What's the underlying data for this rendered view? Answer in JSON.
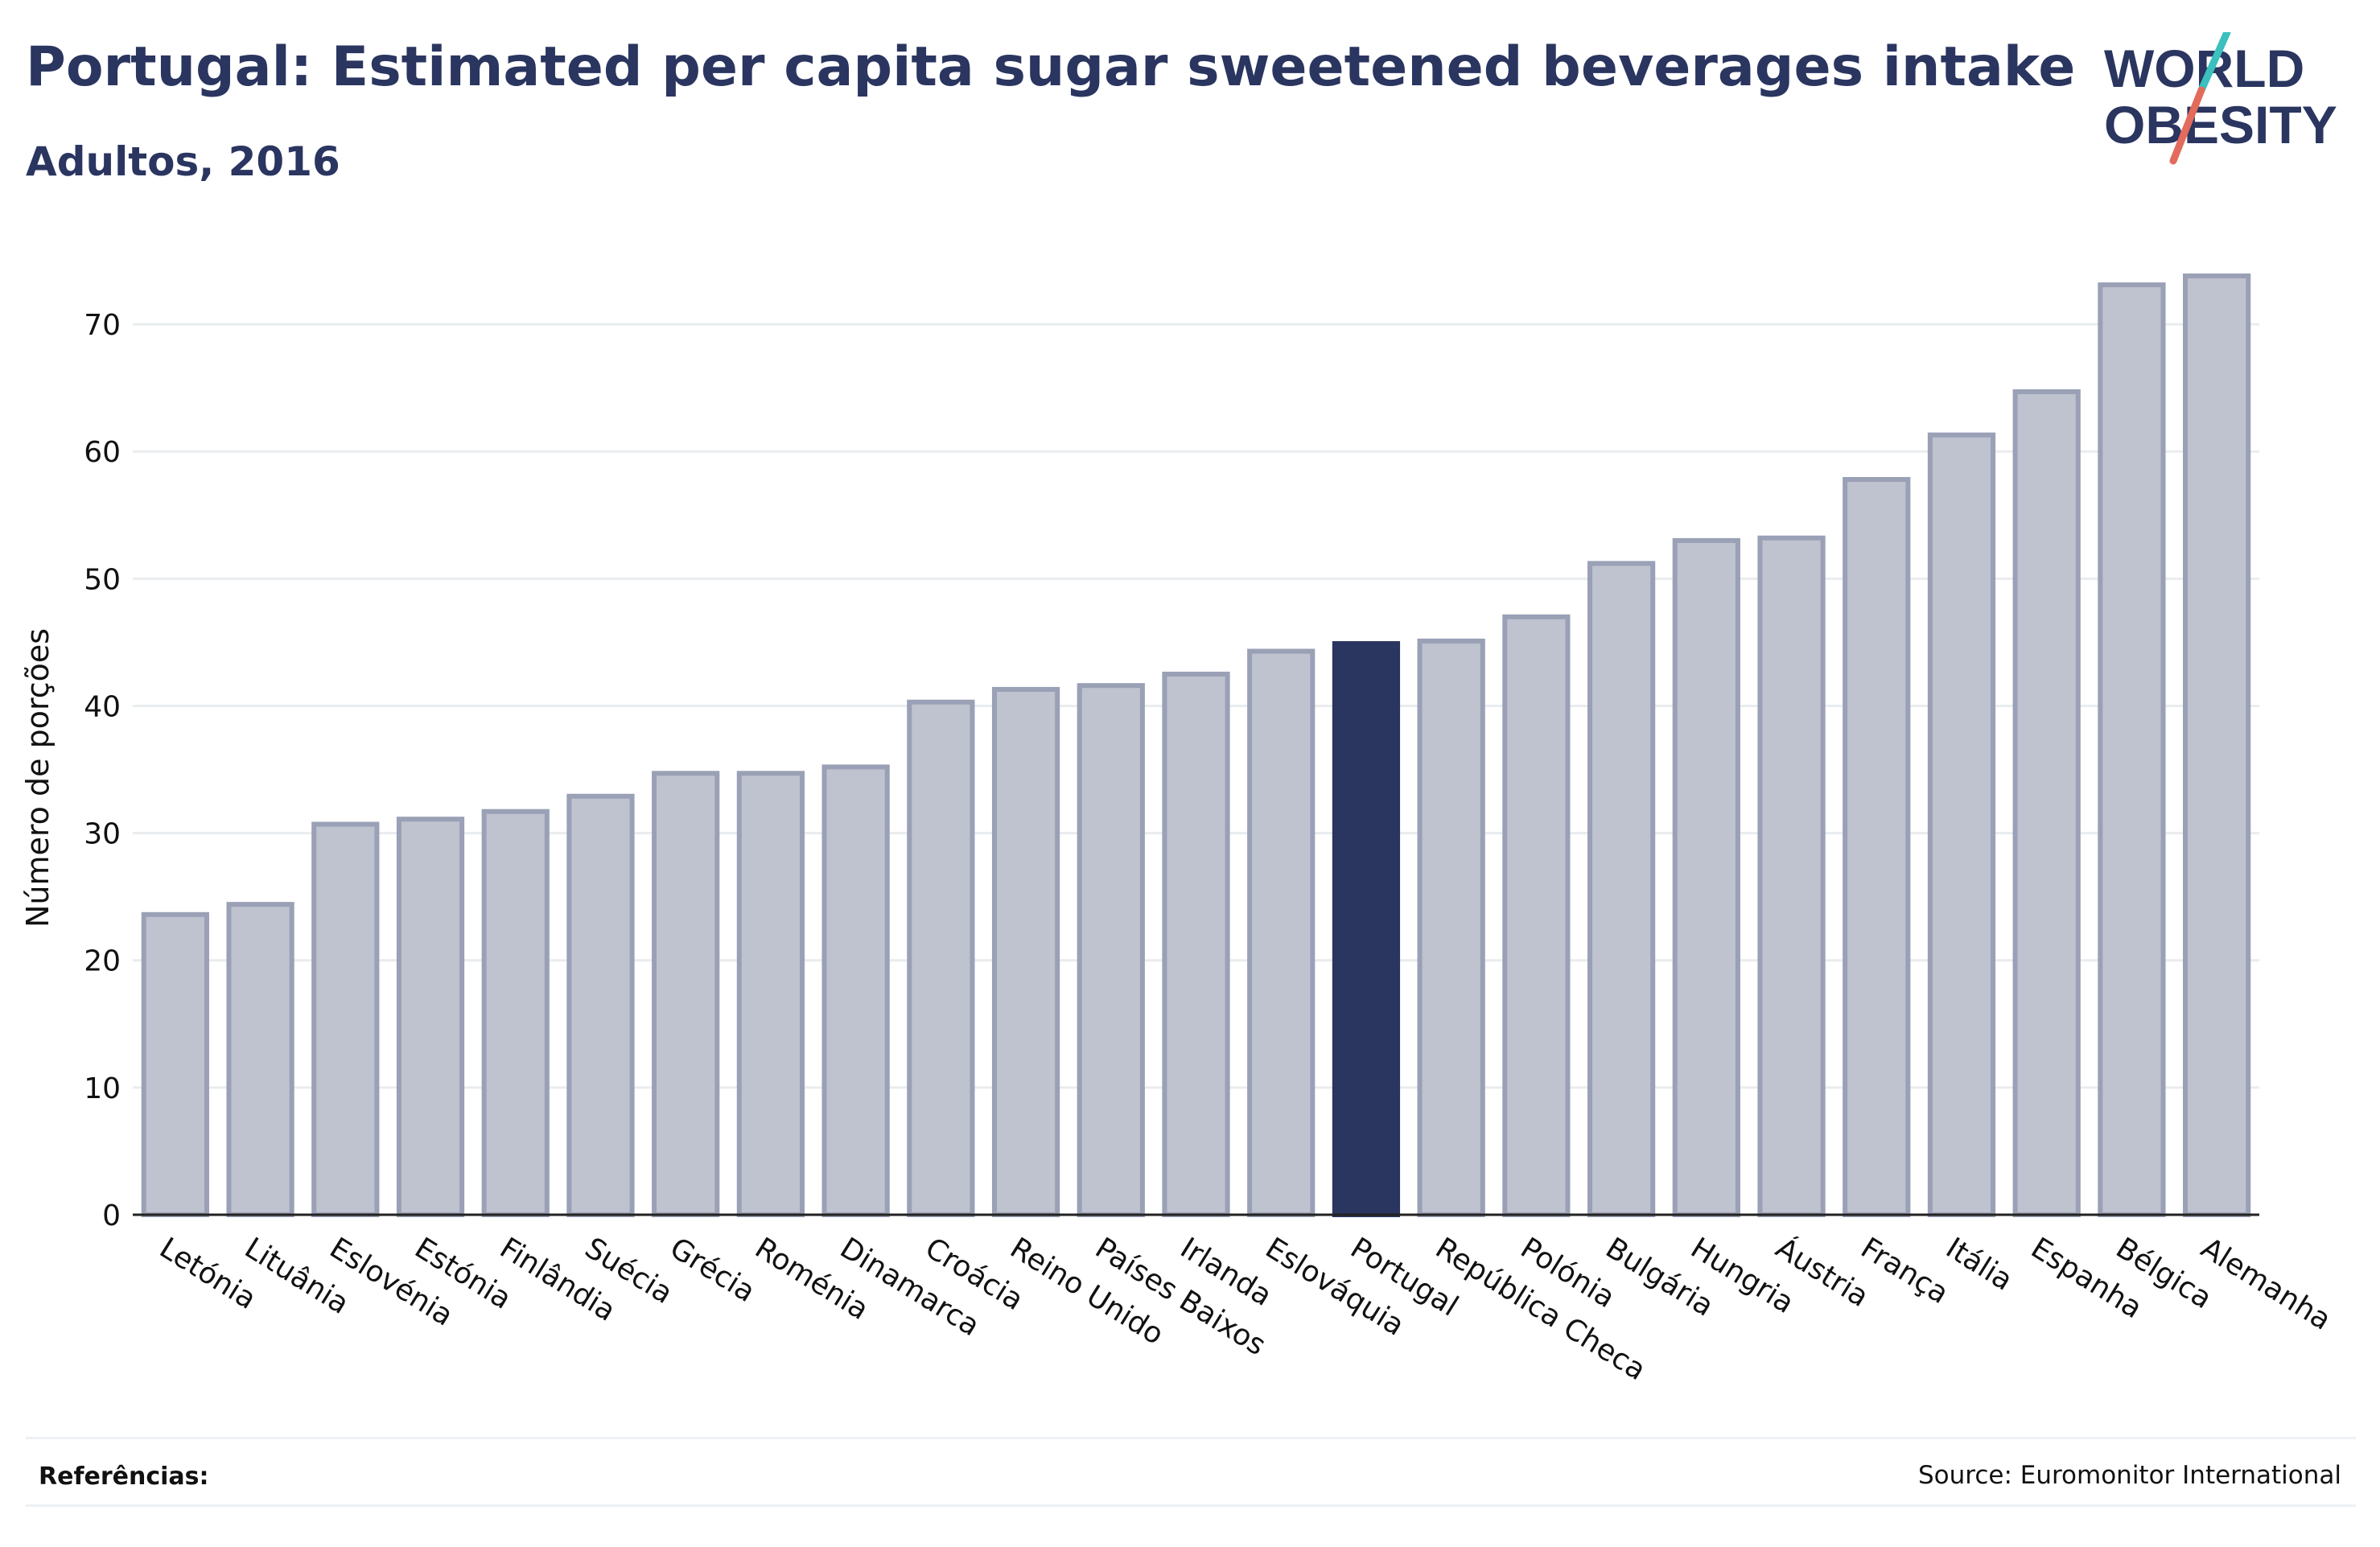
{
  "header": {
    "title": "Portugal: Estimated per capita sugar sweetened beverages intake",
    "subtitle": "Adultos, 2016"
  },
  "logo": {
    "line1": "WORLD",
    "line2": "OBESITY",
    "accent_teal": "#3bbfbf",
    "accent_red": "#e36b5c"
  },
  "footer": {
    "references_label": "Referências:",
    "source": "Source: Euromonitor International"
  },
  "colors": {
    "bar_fill": "#bfc2cf",
    "bar_stroke": "#9aa0b5",
    "highlight": "#2a3560",
    "grid": "#e9ecef",
    "axis": "#222222"
  },
  "chart_data": {
    "type": "bar",
    "title": "Portugal: Estimated per capita sugar sweetened beverages intake",
    "subtitle": "Adultos, 2016",
    "xlabel": "",
    "ylabel": "Número de porções",
    "ylim": [
      0,
      75
    ],
    "yticks": [
      0,
      10,
      20,
      30,
      40,
      50,
      60,
      70
    ],
    "grid": true,
    "highlight": "Portugal",
    "categories": [
      "Letónia",
      "Lituânia",
      "Eslovénia",
      "Estónia",
      "Finlândia",
      "Suécia",
      "Grécia",
      "Roménia",
      "Dinamarca",
      "Croácia",
      "Reino Unido",
      "Países Baixos",
      "Irlanda",
      "Eslováquia",
      "Portugal",
      "República Checa",
      "Polónia",
      "Bulgária",
      "Hungria",
      "Áustria",
      "França",
      "Itália",
      "Espanha",
      "Bélgica",
      "Alemanha"
    ],
    "values": [
      23.6,
      24.4,
      30.7,
      31.1,
      31.7,
      32.9,
      34.7,
      34.7,
      35.2,
      40.3,
      41.3,
      41.6,
      42.5,
      44.3,
      44.9,
      45.1,
      47.0,
      51.2,
      53.0,
      53.2,
      57.8,
      61.3,
      64.7,
      73.1,
      73.8
    ]
  }
}
